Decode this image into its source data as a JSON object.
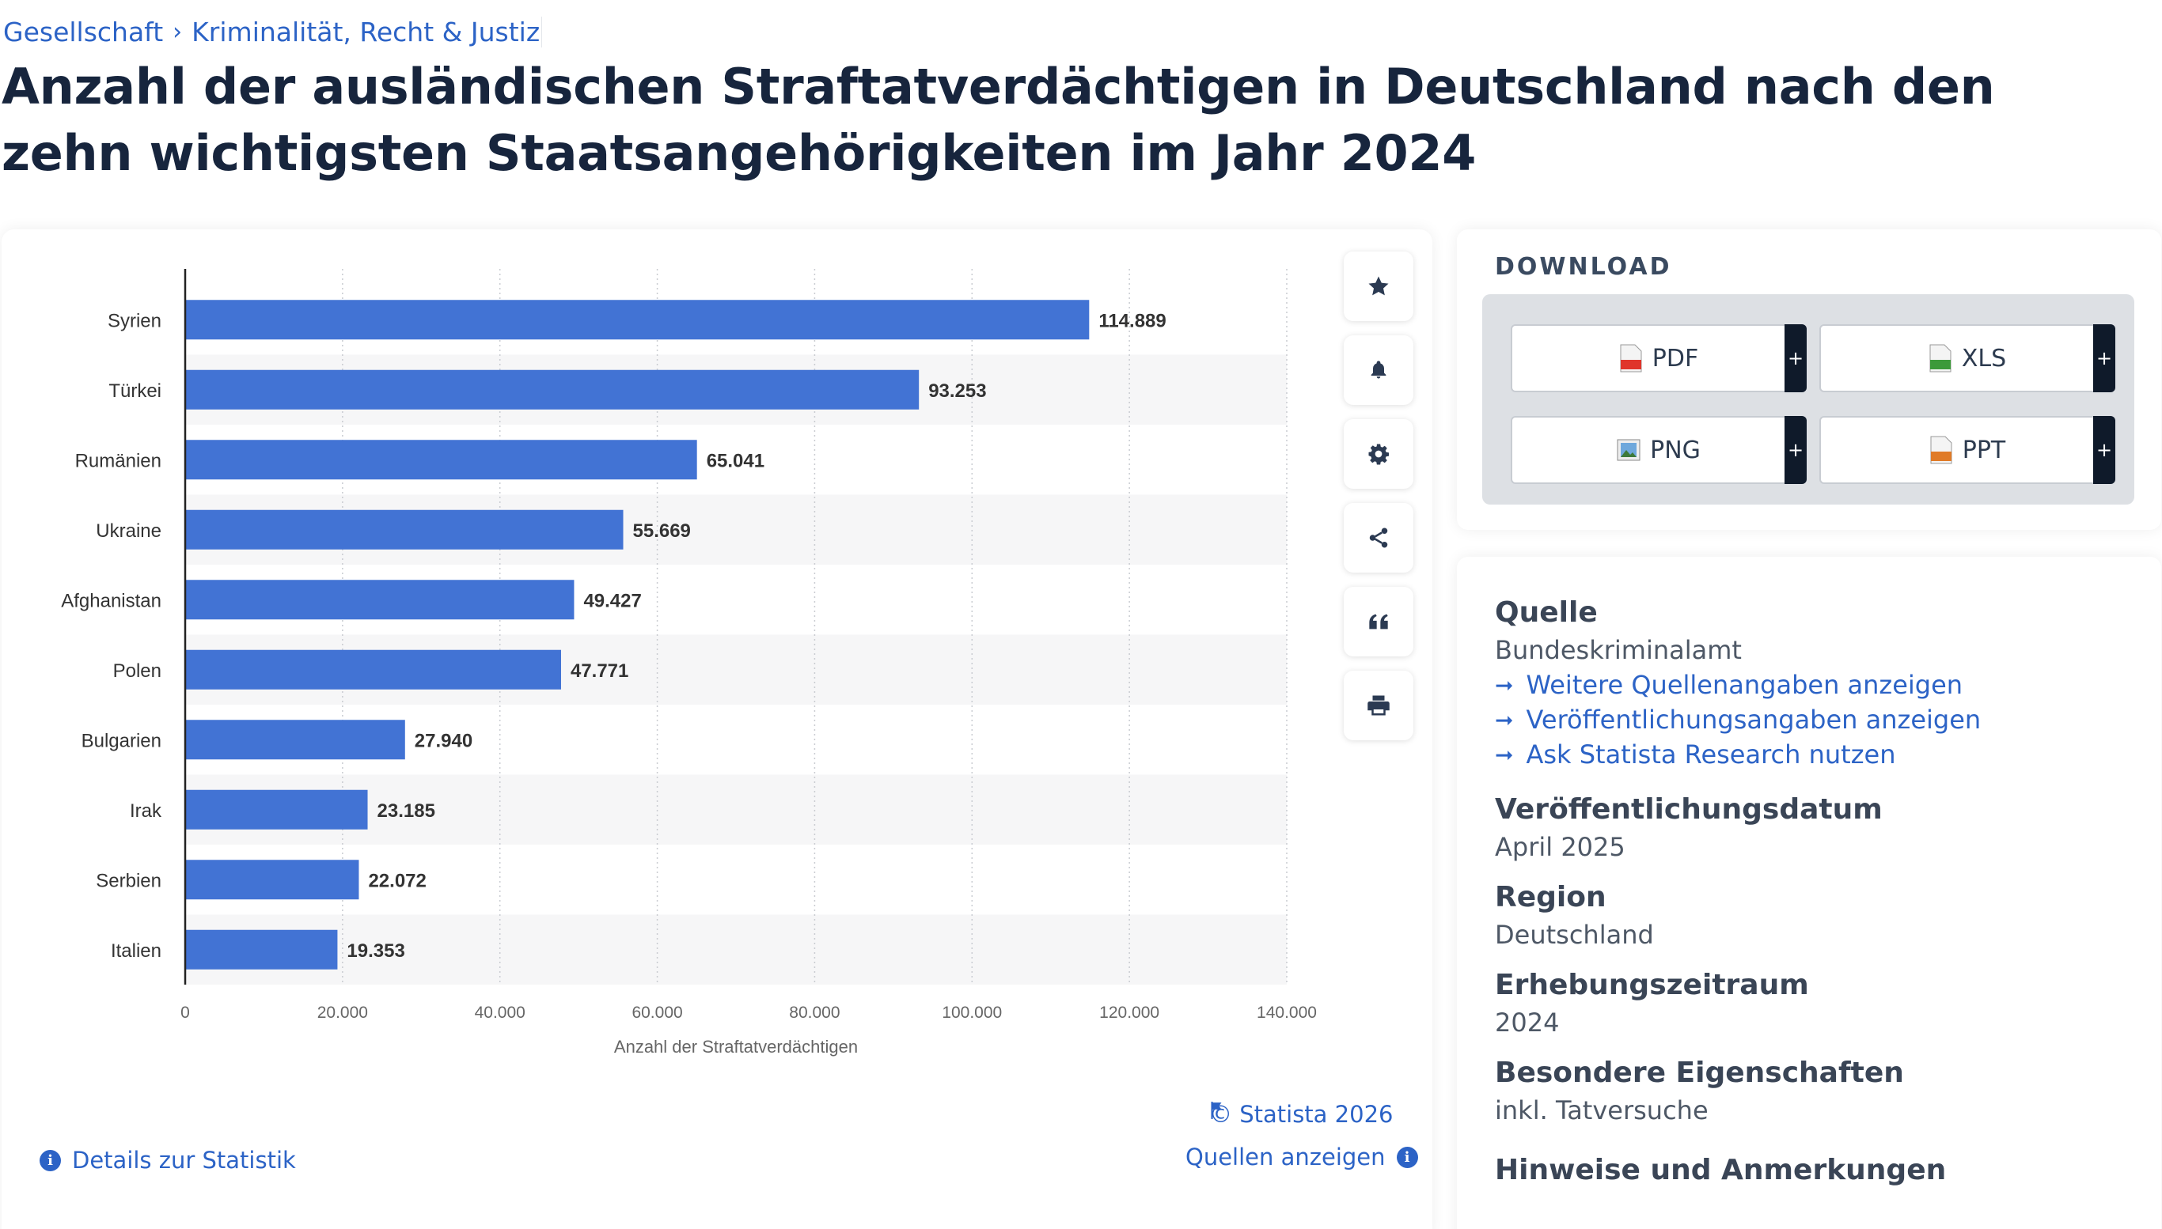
{
  "breadcrumb": {
    "item1": "Gesellschaft",
    "sep": "›",
    "item2": "Kriminalität, Recht & Justiz"
  },
  "page_title": "Anzahl der ausländischen Straftatverdächtigen in Deutschland nach den zehn wichtigsten Staatsangehörigkeiten im Jahr 2024",
  "chart_data": {
    "type": "bar",
    "orientation": "horizontal",
    "categories": [
      "Syrien",
      "Türkei",
      "Rumänien",
      "Ukraine",
      "Afghanistan",
      "Polen",
      "Bulgarien",
      "Irak",
      "Serbien",
      "Italien"
    ],
    "values": [
      114889,
      93253,
      65041,
      55669,
      49427,
      47771,
      27940,
      23185,
      22072,
      19353
    ],
    "value_labels": [
      "114.889",
      "93.253",
      "65.041",
      "55.669",
      "49.427",
      "47.771",
      "27.940",
      "23.185",
      "22.072",
      "19.353"
    ],
    "xlabel": "Anzahl der Straftatverdächtigen",
    "ylabel": "",
    "xlim": [
      0,
      140000
    ],
    "ticks": [
      0,
      20000,
      40000,
      60000,
      80000,
      100000,
      120000,
      140000
    ],
    "tick_labels": [
      "0",
      "20.000",
      "40.000",
      "60.000",
      "80.000",
      "100.000",
      "120.000",
      "140.000"
    ],
    "bar_color": "#4273d4",
    "grid": "vertical-dotted",
    "alternating_row_bands": true
  },
  "chart_footer": {
    "copyright": "© Statista 2026",
    "sources_link": "Quellen anzeigen",
    "details_link": "Details zur Statistik"
  },
  "toolbar": [
    "star-icon",
    "bell-icon",
    "gear-icon",
    "share-icon",
    "quote-icon",
    "print-icon"
  ],
  "download": {
    "title": "DOWNLOAD",
    "buttons": [
      {
        "label": "PDF",
        "plus": "+"
      },
      {
        "label": "XLS",
        "plus": "+"
      },
      {
        "label": "PNG",
        "plus": "+"
      },
      {
        "label": "PPT",
        "plus": "+"
      }
    ]
  },
  "info": {
    "source_heading": "Quelle",
    "source_value": "Bundeskriminalamt",
    "links": [
      "Weitere Quellenangaben anzeigen",
      "Veröffentlichungsangaben anzeigen",
      "Ask Statista Research nutzen"
    ],
    "pub_date_heading": "Veröffentlichungsdatum",
    "pub_date_value": "April 2025",
    "region_heading": "Region",
    "region_value": "Deutschland",
    "period_heading": "Erhebungszeitraum",
    "period_value": "2024",
    "special_heading": "Besondere Eigenschaften",
    "special_value": "inkl. Tatversuche",
    "notes_heading": "Hinweise und Anmerkungen"
  },
  "colors": {
    "accent": "#2c63c6",
    "bar": "#4273d4",
    "title": "#17253d"
  }
}
